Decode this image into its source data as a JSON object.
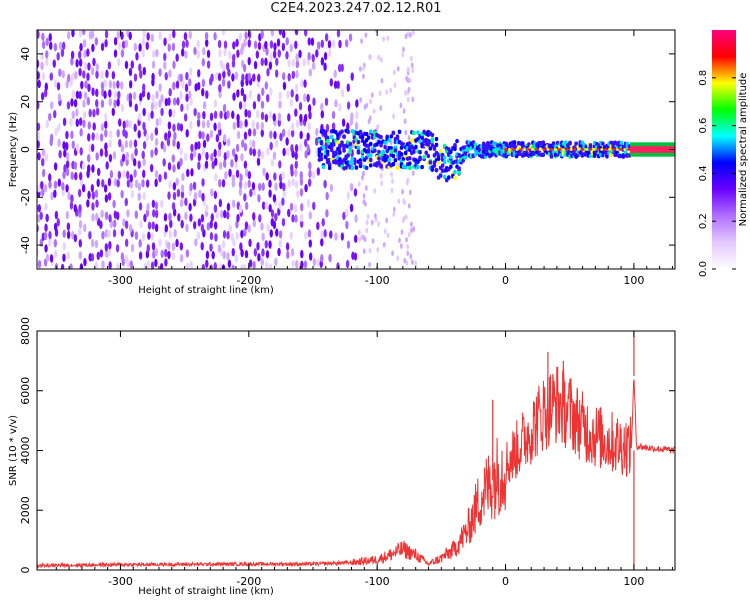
{
  "figure": {
    "title": "C2E4.2023.247.02.12.R01"
  },
  "chart_data": [
    {
      "type": "heatmap",
      "xlabel": "Height of straight line (km)",
      "ylabel": "Frequency (Hz)",
      "xlim": [
        -365,
        132
      ],
      "ylim": [
        -50,
        50
      ],
      "x_ticks": [
        -300,
        -200,
        -100,
        0,
        100
      ],
      "y_ticks": [
        -40,
        -20,
        0,
        20,
        40
      ],
      "colorbar": {
        "label": "Normalized spectral amplitude",
        "range": [
          0,
          1
        ],
        "ticks": [
          0.0,
          0.2,
          0.4,
          0.6,
          0.8
        ],
        "tick_labels": [
          "0.0",
          "0.2",
          "0.4",
          "0.6",
          "0.8"
        ],
        "colormap": [
          "#ffffff",
          "#e4c8ff",
          "#b070ff",
          "#6a00ff",
          "#0000ff",
          "#00ffff",
          "#00ff00",
          "#ffff00",
          "#ff0000",
          "#ff0080"
        ]
      },
      "regions": [
        {
          "description": "broadband noise",
          "x_range": [
            -365,
            -115
          ],
          "y_range": [
            -50,
            50
          ],
          "amplitude": 0.1
        },
        {
          "description": "sparse noise",
          "x_range": [
            -115,
            -70
          ],
          "y_range": [
            -50,
            50
          ],
          "amplitude": 0.05
        },
        {
          "description": "signal line",
          "x_range": [
            -145,
            97
          ],
          "y_center": 0,
          "amplitude": 0.6
        },
        {
          "description": "strong carrier",
          "x_range": [
            97,
            132
          ],
          "y_center": 0,
          "amplitude": 0.95
        }
      ]
    },
    {
      "type": "line",
      "xlabel": "Height of straight line (km)",
      "ylabel": "SNR (10 * v/v)",
      "xlim": [
        -365,
        132
      ],
      "ylim": [
        0,
        8000
      ],
      "x_ticks": [
        -300,
        -200,
        -100,
        0,
        100
      ],
      "y_ticks": [
        0,
        2000,
        4000,
        6000,
        8000
      ],
      "color": "#ee3333",
      "series": [
        {
          "x": [
            -365,
            -300,
            -200,
            -150,
            -120,
            -100,
            -90,
            -80,
            -70,
            -60,
            -50,
            -40,
            -30,
            -20,
            -10,
            0,
            10,
            20,
            30,
            40,
            50,
            60,
            70,
            80,
            90,
            98,
            100,
            102,
            110,
            120,
            132
          ],
          "y": [
            150,
            180,
            200,
            200,
            250,
            350,
            500,
            700,
            500,
            200,
            400,
            700,
            1300,
            2400,
            3000,
            3500,
            4100,
            4700,
            5300,
            5600,
            5300,
            4800,
            4500,
            4300,
            4200,
            4100,
            6500,
            4150,
            4100,
            4050,
            4000
          ]
        }
      ],
      "spikes": [
        {
          "x": 100,
          "y": 8000
        },
        {
          "x": 33,
          "y": 7300
        },
        {
          "x": 45,
          "y": 7000
        },
        {
          "x": -10,
          "y": 5700
        }
      ]
    }
  ]
}
